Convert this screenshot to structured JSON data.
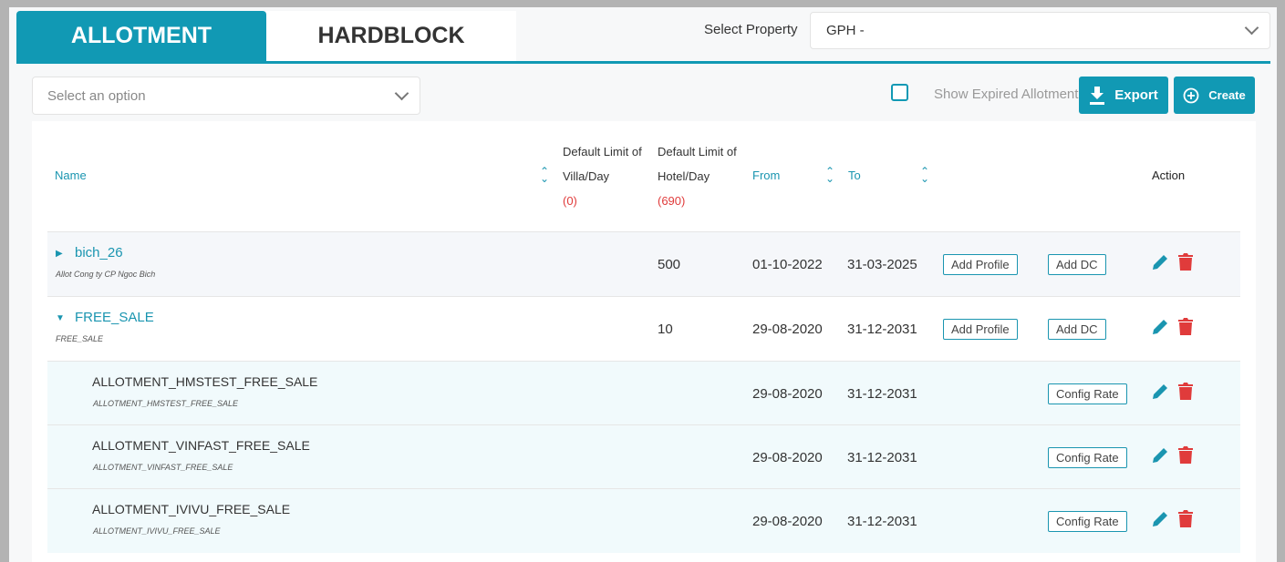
{
  "tabs": [
    {
      "label": "ALLOTMENT",
      "active": true
    },
    {
      "label": "HARDBLOCK",
      "active": false
    }
  ],
  "property": {
    "label": "Select Property",
    "value": "GPH -"
  },
  "filter": {
    "placeholder": "Select an option"
  },
  "show_expired": {
    "label": "Show Expired Allotment",
    "checked": false
  },
  "buttons": {
    "export": "Export",
    "create": "Create"
  },
  "table": {
    "headers": {
      "name": "Name",
      "villa": [
        "Default Limit of",
        "Villa/Day",
        "(0)"
      ],
      "hotel": [
        "Default Limit of",
        "Hotel/Day",
        "(690)"
      ],
      "from": "From",
      "to": "To",
      "action": "Action"
    },
    "rows": [
      {
        "name": "bich_26",
        "sub": "Allot Cong ty CP Ngoc Bich",
        "expanded": false,
        "hotel": "500",
        "from": "01-10-2022",
        "to": "31-03-2025",
        "btn1": "Add Profile",
        "btn2": "Add DC"
      },
      {
        "name": "FREE_SALE",
        "sub": "FREE_SALE",
        "expanded": true,
        "hotel": "10",
        "from": "29-08-2020",
        "to": "31-12-2031",
        "btn1": "Add Profile",
        "btn2": "Add DC"
      },
      {
        "name": "ALLOTMENT_HMSTEST_FREE_SALE",
        "sub": "ALLOTMENT_HMSTEST_FREE_SALE",
        "from": "29-08-2020",
        "to": "31-12-2031",
        "btn2": "Config Rate"
      },
      {
        "name": "ALLOTMENT_VINFAST_FREE_SALE",
        "sub": "ALLOTMENT_VINFAST_FREE_SALE",
        "from": "29-08-2020",
        "to": "31-12-2031",
        "btn2": "Config Rate"
      },
      {
        "name": "ALLOTMENT_IVIVU_FREE_SALE",
        "sub": "ALLOTMENT_IVIVU_FREE_SALE",
        "from": "29-08-2020",
        "to": "31-12-2031",
        "btn2": "Config Rate"
      }
    ]
  },
  "colors": {
    "accent": "#1199b4",
    "danger": "#e03b3b"
  }
}
